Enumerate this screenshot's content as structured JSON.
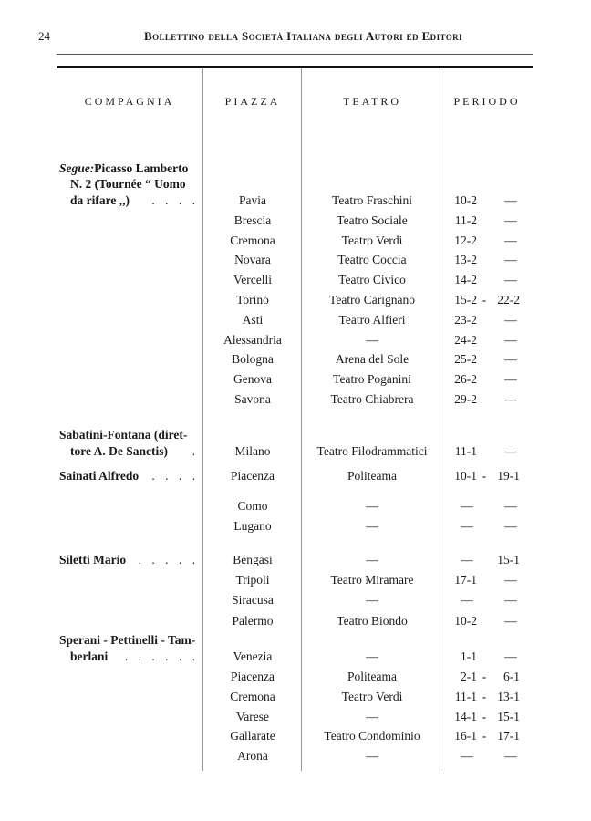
{
  "header": {
    "page_number": "24",
    "running_title": "Bollettino della Società Italiana degli Autori ed Editori"
  },
  "table": {
    "columns": [
      "COMPAGNIA",
      "PIAZZA",
      "TEATRO",
      "PERIODO"
    ],
    "groups": [
      {
        "company_lines": [
          {
            "prefix": "Segue:",
            "text": " Picasso Lamberto",
            "dots": ""
          },
          {
            "text": "N. 2 (Tournée “ Uomo",
            "dots": ""
          },
          {
            "text": "da rifare ,,)",
            "dots": ". . . ."
          }
        ],
        "rows": [
          {
            "piazza": "Pavia",
            "teatro": "Teatro Fraschini",
            "start": "10-2",
            "sep": "",
            "end": "—"
          },
          {
            "piazza": "Brescia",
            "teatro": "Teatro Sociale",
            "start": "11-2",
            "sep": "",
            "end": "—"
          },
          {
            "piazza": "Cremona",
            "teatro": "Teatro Verdi",
            "start": "12-2",
            "sep": "",
            "end": "—"
          },
          {
            "piazza": "Novara",
            "teatro": "Teatro Coccia",
            "start": "13-2",
            "sep": "",
            "end": "—"
          },
          {
            "piazza": "Vercelli",
            "teatro": "Teatro Civico",
            "start": "14-2",
            "sep": "",
            "end": "—"
          },
          {
            "piazza": "Torino",
            "teatro": "Teatro Carignano",
            "start": "15-2",
            "sep": "-",
            "end": "22-2"
          },
          {
            "piazza": "Asti",
            "teatro": "Teatro Alfieri",
            "start": "23-2",
            "sep": "",
            "end": "—"
          },
          {
            "piazza": "Alessandria",
            "teatro": "—",
            "start": "24-2",
            "sep": "",
            "end": "—"
          },
          {
            "piazza": "Bologna",
            "teatro": "Arena del Sole",
            "start": "25-2",
            "sep": "",
            "end": "—"
          },
          {
            "piazza": "Genova",
            "teatro": "Teatro Poganini",
            "start": "26-2",
            "sep": "",
            "end": "—"
          },
          {
            "piazza": "Savona",
            "teatro": "Teatro Chiabrera",
            "start": "29-2",
            "sep": "",
            "end": "—"
          }
        ]
      },
      {
        "company_lines": [
          {
            "text": "Sabatini-Fontana (diret-",
            "dots": ""
          },
          {
            "text": "tore A. De Sanctis)",
            "dots": "."
          }
        ],
        "rows": [
          {
            "piazza": "Milano",
            "teatro": "Teatro Filodrammatici",
            "start": "11-1",
            "sep": "",
            "end": "—"
          }
        ]
      },
      {
        "company_lines": [
          {
            "text": "Sainati Alfredo",
            "dots": ". . . ."
          }
        ],
        "rows": [
          {
            "piazza": "Piacenza",
            "teatro": "Politeama",
            "start": "10-1",
            "sep": "-",
            "end": "19-1"
          },
          {
            "piazza": "Como",
            "teatro": "—",
            "start": "—",
            "sep": "",
            "end": "—"
          },
          {
            "piazza": "Lugano",
            "teatro": "—",
            "start": "—",
            "sep": "",
            "end": "—"
          }
        ]
      },
      {
        "company_lines": [
          {
            "text": "Siletti Mario",
            "dots": ". . . . ."
          }
        ],
        "rows": [
          {
            "piazza": "Bengasi",
            "teatro": "—",
            "start": "—",
            "sep": "",
            "end": "15-1"
          },
          {
            "piazza": "Tripoli",
            "teatro": "Teatro Miramare",
            "start": "17-1",
            "sep": "",
            "end": "—"
          },
          {
            "piazza": "Siracusa",
            "teatro": "—",
            "start": "—",
            "sep": "",
            "end": "—"
          },
          {
            "piazza": "Palermo",
            "teatro": "Teatro Biondo",
            "start": "10-2",
            "sep": "",
            "end": "—"
          }
        ]
      },
      {
        "company_lines": [
          {
            "text": "Sperani - Pettinelli - Tam-",
            "dots": ""
          },
          {
            "text": "berlani",
            "dots": ". . . . . ."
          }
        ],
        "rows": [
          {
            "piazza": "Venezia",
            "teatro": "—",
            "start": "1-1",
            "sep": "",
            "end": "—"
          },
          {
            "piazza": "Piacenza",
            "teatro": "Politeama",
            "start": "2-1",
            "sep": "-",
            "end": "6-1"
          },
          {
            "piazza": "Cremona",
            "teatro": "Teatro Verdi",
            "start": "11-1",
            "sep": "-",
            "end": "13-1"
          },
          {
            "piazza": "Varese",
            "teatro": "—",
            "start": "14-1",
            "sep": "-",
            "end": "15-1"
          },
          {
            "piazza": "Gallarate",
            "teatro": "Teatro Condominio",
            "start": "16-1",
            "sep": "-",
            "end": "17-1"
          },
          {
            "piazza": "Arona",
            "teatro": "—",
            "start": "—",
            "sep": "",
            "end": "—"
          }
        ]
      }
    ]
  }
}
